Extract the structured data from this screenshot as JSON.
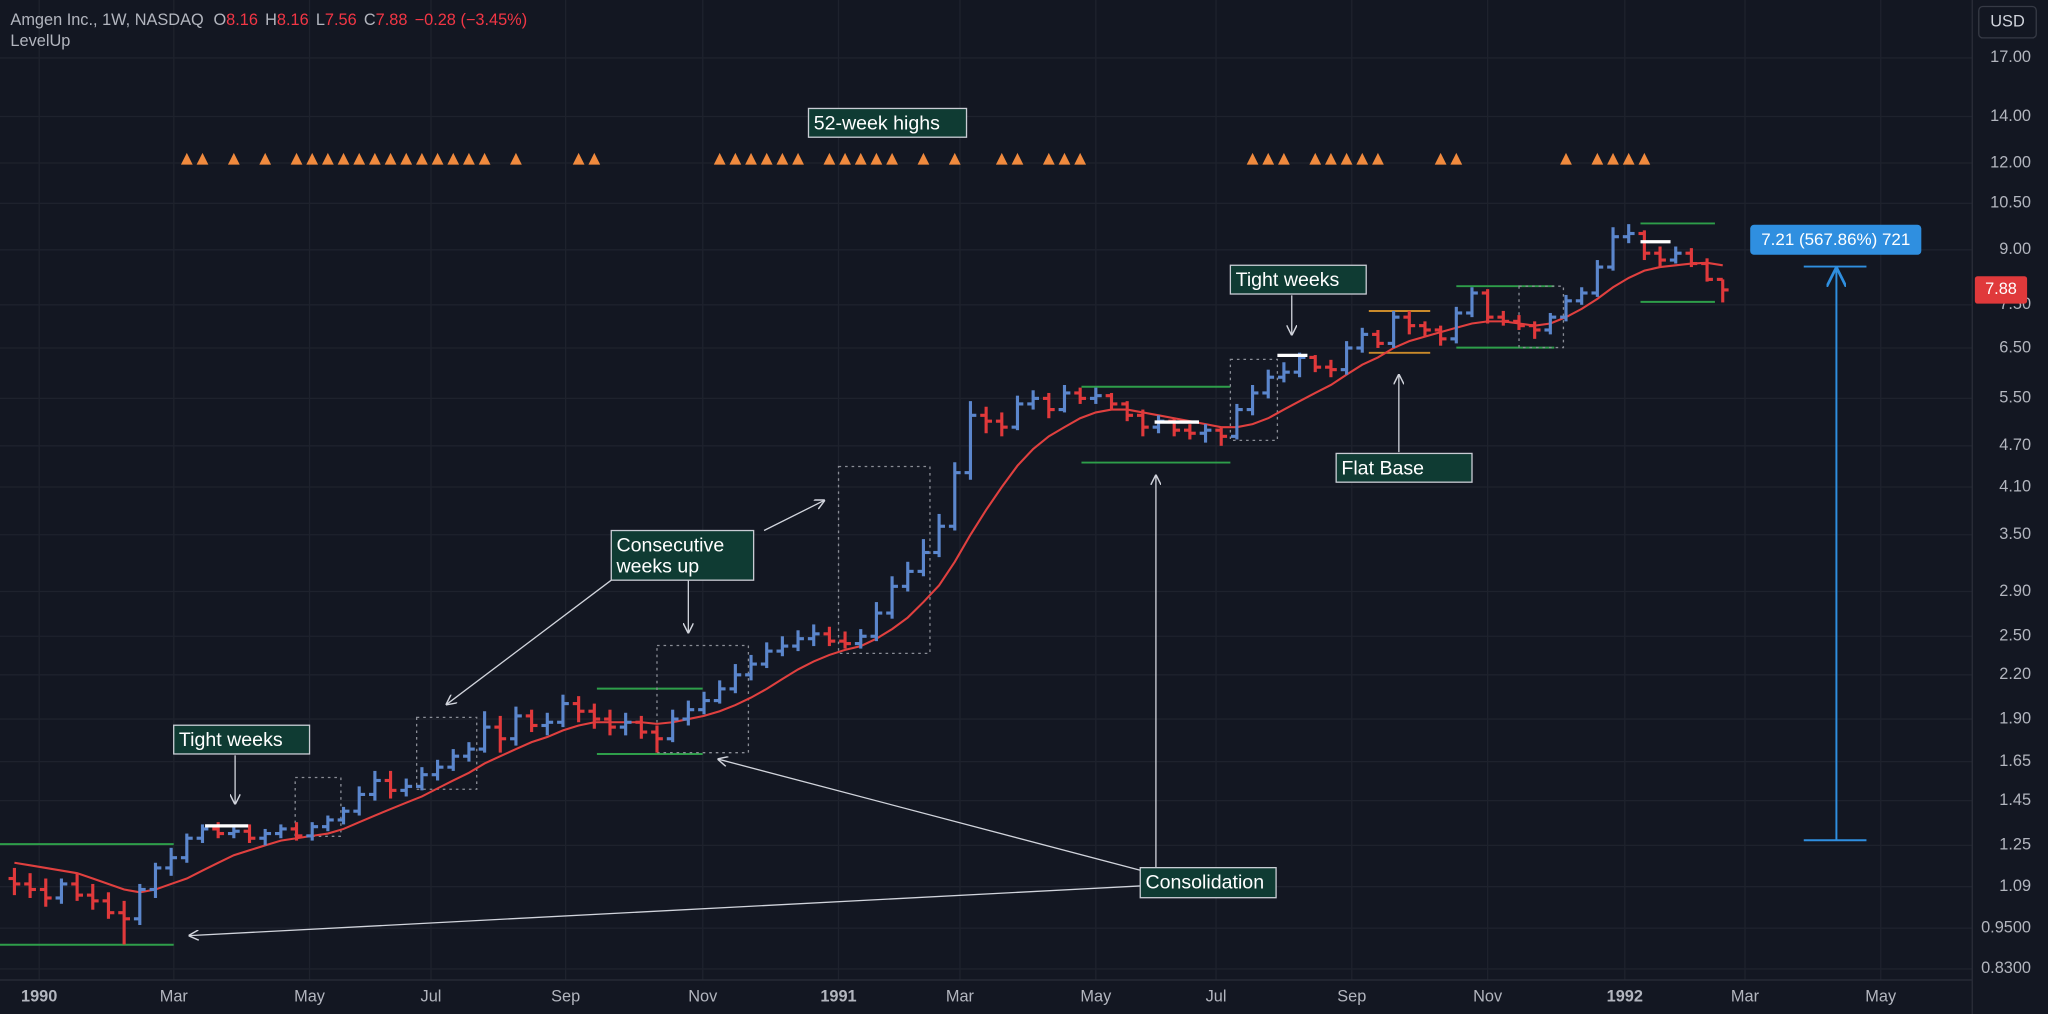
{
  "chart_data": {
    "type": "ohlc",
    "legend": {
      "symbol": "Amgen Inc., 1W, NASDAQ",
      "letters": [
        "O",
        "H",
        "L",
        "C"
      ],
      "values": [
        8.16,
        8.16,
        7.56,
        7.88
      ],
      "change": {
        "value": -0.28,
        "label": "−0.28"
      },
      "change_pct": {
        "value": -3.45,
        "label": "(−3.45%)"
      },
      "study": "LevelUp"
    },
    "currency": "USD",
    "annotations": [
      "52-week highs",
      "Tight weeks",
      [
        "Consecutive",
        "weeks up"
      ],
      "Tight weeks",
      "Flat Base",
      "Consolidation"
    ],
    "measure_label": "7.21 (567.86%) 721",
    "log_scale": true,
    "grid": true,
    "up_color": "#5b86cc",
    "down_color": "#e0393b",
    "ma_color": "#e0403f",
    "marker_color": "#f08a3e",
    "xlim": [
      -0.92,
      124.92
    ],
    "xticks": [
      {
        "value": 1.58,
        "label": "1990"
      },
      {
        "value": 10.17,
        "label": "Mar"
      },
      {
        "value": 18.83,
        "label": "May"
      },
      {
        "value": 26.58,
        "label": "Jul"
      },
      {
        "value": 35.17,
        "label": "Sep"
      },
      {
        "value": 43.92,
        "label": "Nov"
      },
      {
        "value": 52.58,
        "label": "1991"
      },
      {
        "value": 60.33,
        "label": "Mar"
      },
      {
        "value": 69,
        "label": "May"
      },
      {
        "value": 76.67,
        "label": "Jul"
      },
      {
        "value": 85.33,
        "label": "Sep"
      },
      {
        "value": 94,
        "label": "Nov"
      },
      {
        "value": 102.75,
        "label": "1992"
      },
      {
        "value": 110.42,
        "label": "Mar"
      },
      {
        "value": 119.08,
        "label": "May"
      }
    ],
    "ylim": [
      0.8,
      20.6
    ],
    "yticks": [
      {
        "value": 17,
        "label": "17.00"
      },
      {
        "value": 14,
        "label": "14.00"
      },
      {
        "value": 12,
        "label": "12.00"
      },
      {
        "value": 10.5,
        "label": "10.50"
      },
      {
        "value": 9,
        "label": "9.00"
      },
      {
        "value": 7.5,
        "label": "7.50"
      },
      {
        "value": 6.5,
        "label": "6.50"
      },
      {
        "value": 5.5,
        "label": "5.50"
      },
      {
        "value": 4.7,
        "label": "4.70"
      },
      {
        "value": 4.1,
        "label": "4.10"
      },
      {
        "value": 3.5,
        "label": "3.50"
      },
      {
        "value": 2.9,
        "label": "2.90"
      },
      {
        "value": 2.5,
        "label": "2.50"
      },
      {
        "value": 2.2,
        "label": "2.20"
      },
      {
        "value": 1.9,
        "label": "1.90"
      },
      1.65,
      1.45,
      1.25,
      1.09,
      {
        "value": 0.95,
        "label": "0.9500"
      },
      {
        "value": 0.83,
        "label": "0.8300"
      }
    ],
    "open": [
      1.12,
      1.1,
      1.08,
      1.05,
      1.1,
      1.06,
      1.04,
      1.0,
      0.98,
      1.08,
      1.16,
      1.2,
      1.28,
      1.32,
      1.3,
      1.31,
      1.28,
      1.3,
      1.32,
      1.29,
      1.33,
      1.36,
      1.4,
      1.48,
      1.55,
      1.5,
      1.52,
      1.58,
      1.62,
      1.68,
      1.72,
      1.85,
      1.78,
      1.92,
      1.86,
      1.88,
      2.0,
      1.95,
      1.9,
      1.85,
      1.88,
      1.82,
      1.78,
      1.9,
      1.96,
      2.02,
      2.1,
      2.2,
      2.28,
      2.38,
      2.42,
      2.48,
      2.52,
      2.46,
      2.44,
      2.5,
      2.7,
      2.95,
      3.1,
      3.3,
      3.6,
      4.3,
      5.2,
      5.1,
      5.0,
      5.4,
      5.5,
      5.3,
      5.6,
      5.5,
      5.55,
      5.4,
      5.2,
      5.0,
      5.1,
      4.95,
      4.9,
      4.95,
      4.85,
      5.3,
      5.6,
      5.9,
      6.0,
      6.3,
      6.1,
      6.05,
      6.5,
      6.8,
      6.6,
      7.2,
      7.0,
      6.9,
      6.7,
      7.3,
      7.8,
      7.2,
      7.1,
      7.0,
      6.9,
      7.2,
      7.6,
      7.8,
      8.5,
      9.4,
      9.5,
      8.9,
      8.7,
      8.9,
      8.6,
      8.16
    ],
    "high": [
      1.16,
      1.14,
      1.12,
      1.12,
      1.14,
      1.1,
      1.07,
      1.04,
      1.1,
      1.18,
      1.24,
      1.3,
      1.34,
      1.35,
      1.34,
      1.34,
      1.32,
      1.34,
      1.35,
      1.35,
      1.38,
      1.42,
      1.52,
      1.6,
      1.6,
      1.56,
      1.62,
      1.66,
      1.72,
      1.76,
      1.95,
      1.92,
      1.98,
      1.96,
      1.94,
      2.06,
      2.05,
      2.0,
      1.96,
      1.94,
      1.92,
      1.86,
      1.96,
      2.02,
      2.08,
      2.16,
      2.28,
      2.35,
      2.45,
      2.5,
      2.55,
      2.6,
      2.58,
      2.54,
      2.56,
      2.8,
      3.05,
      3.2,
      3.45,
      3.75,
      4.45,
      5.45,
      5.35,
      5.25,
      5.55,
      5.65,
      5.6,
      5.75,
      5.7,
      5.7,
      5.6,
      5.45,
      5.3,
      5.2,
      5.15,
      5.05,
      5.05,
      5.0,
      5.4,
      5.75,
      6.05,
      6.2,
      6.4,
      6.35,
      6.25,
      6.65,
      6.95,
      6.9,
      7.35,
      7.35,
      7.1,
      7.0,
      7.45,
      7.95,
      7.9,
      7.35,
      7.25,
      7.1,
      7.3,
      7.75,
      7.95,
      8.7,
      9.7,
      9.8,
      9.6,
      9.1,
      9.1,
      9.05,
      8.75,
      8.16
    ],
    "low": [
      1.06,
      1.05,
      1.02,
      1.03,
      1.04,
      1.01,
      0.98,
      0.9,
      0.96,
      1.05,
      1.13,
      1.18,
      1.26,
      1.28,
      1.28,
      1.26,
      1.25,
      1.28,
      1.27,
      1.27,
      1.31,
      1.34,
      1.38,
      1.45,
      1.46,
      1.47,
      1.5,
      1.55,
      1.6,
      1.65,
      1.7,
      1.7,
      1.74,
      1.82,
      1.8,
      1.85,
      1.88,
      1.84,
      1.8,
      1.8,
      1.78,
      1.7,
      1.76,
      1.86,
      1.93,
      2.0,
      2.07,
      2.16,
      2.25,
      2.34,
      2.38,
      2.42,
      2.42,
      2.4,
      2.4,
      2.46,
      2.65,
      2.9,
      3.05,
      3.25,
      3.55,
      4.2,
      4.9,
      4.85,
      4.95,
      5.3,
      5.15,
      5.25,
      5.4,
      5.4,
      5.3,
      5.1,
      4.85,
      4.9,
      4.85,
      4.8,
      4.75,
      4.7,
      4.8,
      5.2,
      5.5,
      5.8,
      5.9,
      6.0,
      5.9,
      5.95,
      6.4,
      6.5,
      6.5,
      6.8,
      6.75,
      6.55,
      6.6,
      7.2,
      7.05,
      7.0,
      6.9,
      6.7,
      6.8,
      7.1,
      7.5,
      7.7,
      8.4,
      9.2,
      8.7,
      8.5,
      8.6,
      8.5,
      8.1,
      7.56
    ],
    "close": [
      1.1,
      1.08,
      1.05,
      1.1,
      1.06,
      1.04,
      1.0,
      0.98,
      1.08,
      1.16,
      1.2,
      1.28,
      1.32,
      1.3,
      1.31,
      1.28,
      1.3,
      1.32,
      1.29,
      1.33,
      1.36,
      1.4,
      1.48,
      1.55,
      1.5,
      1.52,
      1.58,
      1.62,
      1.68,
      1.72,
      1.85,
      1.78,
      1.92,
      1.86,
      1.88,
      2.0,
      1.95,
      1.9,
      1.85,
      1.88,
      1.82,
      1.78,
      1.9,
      1.96,
      2.02,
      2.1,
      2.2,
      2.28,
      2.38,
      2.42,
      2.48,
      2.52,
      2.46,
      2.44,
      2.5,
      2.7,
      2.95,
      3.1,
      3.3,
      3.6,
      4.3,
      5.2,
      5.1,
      5.0,
      5.4,
      5.5,
      5.3,
      5.6,
      5.5,
      5.55,
      5.4,
      5.2,
      5.0,
      5.1,
      4.95,
      4.9,
      4.95,
      4.85,
      5.3,
      5.6,
      5.9,
      6.0,
      6.3,
      6.1,
      6.05,
      6.5,
      6.8,
      6.6,
      7.2,
      7.0,
      6.9,
      6.7,
      7.3,
      7.8,
      7.2,
      7.1,
      7.0,
      6.9,
      7.2,
      7.6,
      7.8,
      8.5,
      9.4,
      9.5,
      8.9,
      8.7,
      8.9,
      8.6,
      8.16,
      7.88
    ],
    "ma": [
      1.18,
      1.17,
      1.16,
      1.15,
      1.14,
      1.12,
      1.1,
      1.08,
      1.07,
      1.08,
      1.1,
      1.12,
      1.15,
      1.18,
      1.21,
      1.23,
      1.25,
      1.27,
      1.28,
      1.29,
      1.3,
      1.32,
      1.35,
      1.38,
      1.41,
      1.44,
      1.47,
      1.51,
      1.55,
      1.59,
      1.64,
      1.68,
      1.72,
      1.76,
      1.79,
      1.83,
      1.86,
      1.88,
      1.88,
      1.88,
      1.88,
      1.87,
      1.88,
      1.9,
      1.92,
      1.95,
      1.99,
      2.04,
      2.1,
      2.17,
      2.24,
      2.3,
      2.35,
      2.39,
      2.42,
      2.48,
      2.56,
      2.66,
      2.8,
      2.96,
      3.2,
      3.5,
      3.8,
      4.1,
      4.4,
      4.65,
      4.85,
      5.0,
      5.15,
      5.25,
      5.3,
      5.3,
      5.25,
      5.2,
      5.15,
      5.1,
      5.05,
      5.0,
      5.0,
      5.05,
      5.15,
      5.3,
      5.45,
      5.6,
      5.75,
      5.95,
      6.15,
      6.3,
      6.5,
      6.65,
      6.75,
      6.85,
      6.95,
      7.05,
      7.1,
      7.1,
      7.05,
      7.0,
      7.05,
      7.2,
      7.4,
      7.65,
      7.95,
      8.2,
      8.4,
      8.5,
      8.55,
      8.6,
      8.62,
      8.55
    ],
    "highs_52w": [
      11,
      12,
      14,
      16,
      18,
      19,
      20,
      21,
      22,
      23,
      24,
      25,
      26,
      27,
      28,
      29,
      30,
      32,
      36,
      37,
      45,
      46,
      47,
      48,
      49,
      50,
      52,
      53,
      54,
      55,
      56,
      58,
      60,
      63,
      64,
      66,
      67,
      68,
      79,
      80,
      81,
      83,
      84,
      85,
      86,
      87,
      91,
      92,
      99,
      101,
      102,
      103,
      104
    ]
  }
}
